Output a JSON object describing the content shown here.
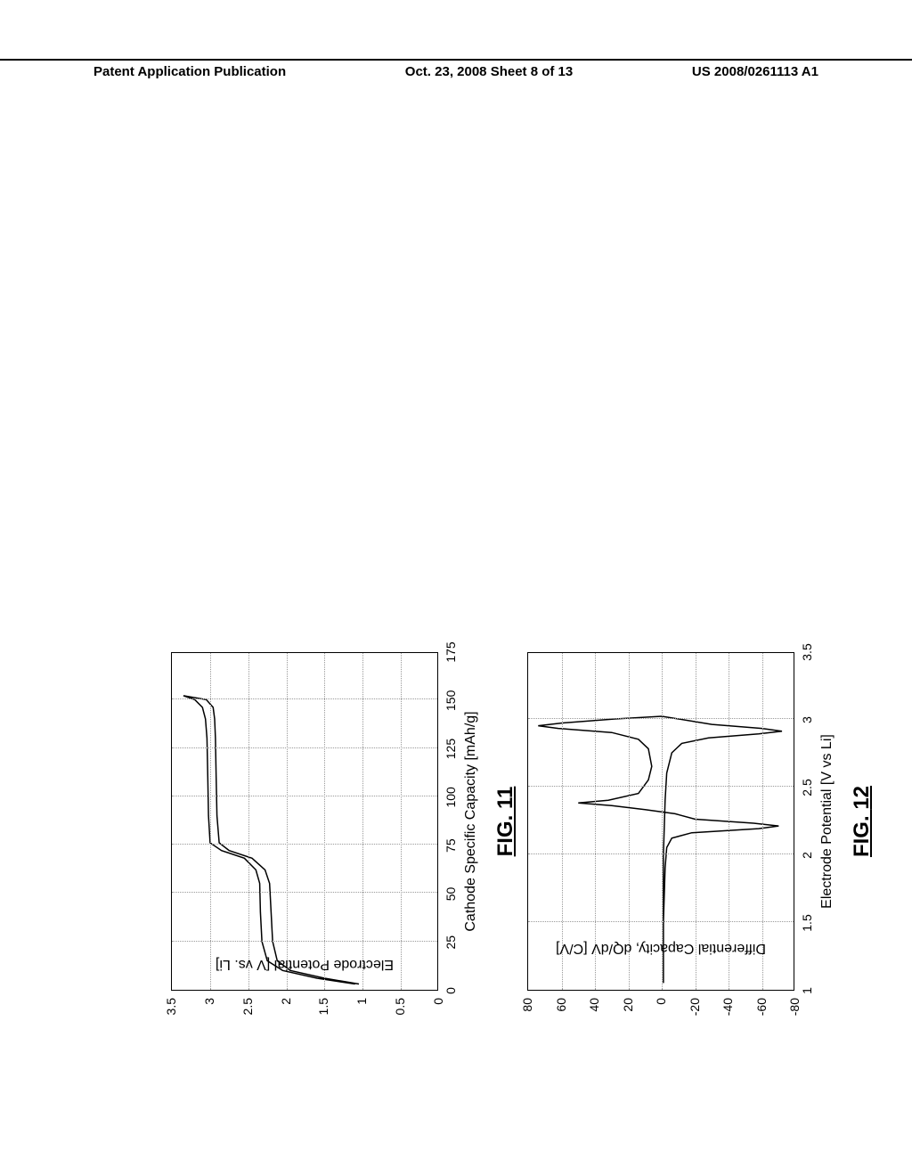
{
  "header": {
    "left": "Patent Application Publication",
    "mid": "Oct. 23, 2008  Sheet 8 of 13",
    "right": "US 2008/0261113 A1"
  },
  "fig11": {
    "caption_prefix": "FIG. ",
    "caption_number": "11",
    "xlabel": "Cathode Specific Capacity [mAh/g]",
    "ylabel": "Electrode Potential [V vs. Li]",
    "xlim": [
      0,
      175
    ],
    "ylim": [
      0,
      3.5
    ],
    "xticks": [
      0,
      25,
      50,
      75,
      100,
      125,
      150,
      175
    ],
    "yticks": [
      0,
      0.5,
      1.0,
      1.5,
      2.0,
      2.5,
      3.0,
      3.5
    ],
    "grid_color": "#999",
    "line_color": "#000",
    "line_width": 1.5,
    "curve_upper": [
      [
        3,
        1.1
      ],
      [
        6,
        1.6
      ],
      [
        10,
        2.05
      ],
      [
        15,
        2.25
      ],
      [
        25,
        2.32
      ],
      [
        40,
        2.34
      ],
      [
        55,
        2.35
      ],
      [
        62,
        2.4
      ],
      [
        68,
        2.55
      ],
      [
        72,
        2.85
      ],
      [
        76,
        3.0
      ],
      [
        90,
        3.02
      ],
      [
        110,
        3.03
      ],
      [
        130,
        3.04
      ],
      [
        140,
        3.06
      ],
      [
        146,
        3.1
      ],
      [
        150,
        3.2
      ],
      [
        152,
        3.35
      ]
    ],
    "curve_lower": [
      [
        152,
        3.35
      ],
      [
        150,
        3.05
      ],
      [
        146,
        2.96
      ],
      [
        140,
        2.94
      ],
      [
        130,
        2.93
      ],
      [
        110,
        2.92
      ],
      [
        90,
        2.91
      ],
      [
        76,
        2.88
      ],
      [
        72,
        2.75
      ],
      [
        68,
        2.45
      ],
      [
        62,
        2.28
      ],
      [
        55,
        2.22
      ],
      [
        40,
        2.2
      ],
      [
        25,
        2.18
      ],
      [
        15,
        2.12
      ],
      [
        10,
        1.95
      ],
      [
        6,
        1.5
      ],
      [
        3,
        1.05
      ]
    ]
  },
  "fig12": {
    "caption_prefix": "FIG. ",
    "caption_number": "12",
    "xlabel": "Electrode Potential [V vs Li]",
    "ylabel": "Differential Capacity, dQ/dV [C/V]",
    "xlim": [
      1.0,
      3.5
    ],
    "ylim": [
      -80,
      80
    ],
    "xticks": [
      1.0,
      1.5,
      2.0,
      2.5,
      3.0,
      3.5
    ],
    "yticks": [
      -80,
      -60,
      -40,
      -20,
      0,
      20,
      40,
      60,
      80
    ],
    "grid_color": "#999",
    "line_color": "#000",
    "line_width": 1.5,
    "curve": [
      [
        1.05,
        -1
      ],
      [
        1.5,
        -1
      ],
      [
        1.9,
        -2
      ],
      [
        2.05,
        -3
      ],
      [
        2.12,
        -6
      ],
      [
        2.16,
        -18
      ],
      [
        2.19,
        -58
      ],
      [
        2.21,
        -70
      ],
      [
        2.23,
        -55
      ],
      [
        2.26,
        -20
      ],
      [
        2.3,
        -8
      ],
      [
        2.33,
        10
      ],
      [
        2.36,
        30
      ],
      [
        2.38,
        50
      ],
      [
        2.4,
        32
      ],
      [
        2.45,
        14
      ],
      [
        2.55,
        8
      ],
      [
        2.65,
        6
      ],
      [
        2.78,
        8
      ],
      [
        2.85,
        14
      ],
      [
        2.9,
        30
      ],
      [
        2.93,
        62
      ],
      [
        2.95,
        74
      ],
      [
        2.97,
        60
      ],
      [
        3.0,
        28
      ],
      [
        3.02,
        0
      ],
      [
        3.0,
        -10
      ],
      [
        2.96,
        -30
      ],
      [
        2.93,
        -60
      ],
      [
        2.91,
        -72
      ],
      [
        2.89,
        -58
      ],
      [
        2.86,
        -28
      ],
      [
        2.82,
        -12
      ],
      [
        2.75,
        -6
      ],
      [
        2.6,
        -3
      ],
      [
        2.4,
        -2
      ],
      [
        2.0,
        -1
      ],
      [
        1.5,
        -1
      ],
      [
        1.05,
        -1
      ]
    ]
  }
}
